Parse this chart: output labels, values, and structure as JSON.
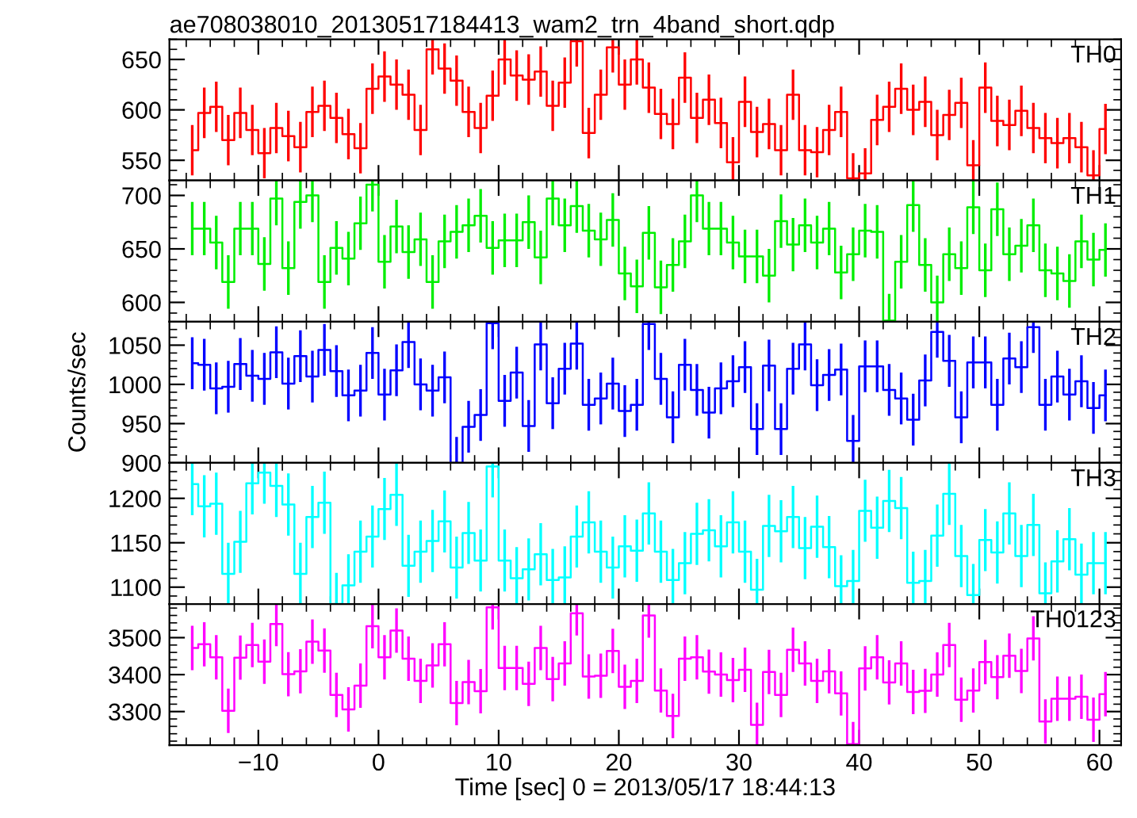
{
  "chart_data": [
    {
      "type": "step",
      "title": "ae708038010_20130517184413_wam2_trn_4band_short.qdp",
      "annotations": [
        "TH0"
      ],
      "tick_labels": "y",
      "color": "#ff0000",
      "x": [
        -15.5,
        -14.5,
        -13.5,
        -12.5,
        -11.5,
        -10.5,
        -9.5,
        -8.5,
        -7.5,
        -6.5,
        -5.5,
        -4.5,
        -3.5,
        -2.5,
        -1.5,
        -0.5,
        0.5,
        1.5,
        2.5,
        3.5,
        4.5,
        5.5,
        6.5,
        7.5,
        8.5,
        9.5,
        10.5,
        11.5,
        12.5,
        13.5,
        14.5,
        15.5,
        16.5,
        17.5,
        18.5,
        19.5,
        20.5,
        21.5,
        22.5,
        23.5,
        24.5,
        25.5,
        26.5,
        27.5,
        28.5,
        29.5,
        30.5,
        31.5,
        32.5,
        33.5,
        34.5,
        35.5,
        36.5,
        37.5,
        38.5,
        39.5,
        40.5,
        41.5,
        42.5,
        43.5,
        44.5,
        45.5,
        46.5,
        47.5,
        48.5,
        49.5,
        50.5,
        51.5,
        52.5,
        53.5,
        54.5,
        55.5,
        56.5,
        57.5,
        58.5,
        59.5,
        60.5
      ],
      "values": [
        560,
        597,
        603,
        570,
        597,
        580,
        557,
        582,
        574,
        563,
        598,
        604,
        592,
        576,
        562,
        621,
        633,
        625,
        615,
        580,
        660,
        641,
        629,
        598,
        582,
        614,
        650,
        634,
        630,
        638,
        604,
        627,
        668,
        577,
        615,
        662,
        625,
        650,
        622,
        596,
        586,
        632,
        592,
        610,
        587,
        548,
        608,
        578,
        586,
        560,
        615,
        560,
        558,
        580,
        598,
        532,
        537,
        590,
        603,
        621,
        600,
        608,
        575,
        595,
        607,
        545,
        622,
        589,
        585,
        599,
        582,
        572,
        567,
        572,
        563,
        535,
        581
      ],
      "errors": [
        25,
        25,
        25,
        25,
        25,
        25,
        25,
        25,
        25,
        25,
        25,
        25,
        25,
        25,
        25,
        25,
        25,
        25,
        25,
        25,
        25,
        25,
        25,
        25,
        25,
        25,
        25,
        25,
        25,
        25,
        25,
        25,
        25,
        25,
        25,
        25,
        25,
        25,
        25,
        25,
        25,
        25,
        25,
        25,
        25,
        25,
        25,
        25,
        25,
        25,
        25,
        25,
        25,
        25,
        25,
        25,
        25,
        25,
        25,
        25,
        25,
        25,
        25,
        25,
        25,
        25,
        25,
        25,
        25,
        25,
        25,
        25,
        25,
        25,
        25,
        25,
        25
      ],
      "xlim": [
        -17.4,
        61.8
      ],
      "xticks": [
        -10,
        0,
        10,
        20,
        30,
        40,
        50,
        60
      ],
      "ylim": [
        530,
        670
      ],
      "yticks": [
        550,
        600,
        650
      ]
    },
    {
      "type": "step",
      "annotations": [
        "TH1"
      ],
      "tick_labels": "y",
      "color": "#00ee00",
      "x": [
        -15.5,
        -14.5,
        -13.5,
        -12.5,
        -11.5,
        -10.5,
        -9.5,
        -8.5,
        -7.5,
        -6.5,
        -5.5,
        -4.5,
        -3.5,
        -2.5,
        -1.5,
        -0.5,
        0.5,
        1.5,
        2.5,
        3.5,
        4.5,
        5.5,
        6.5,
        7.5,
        8.5,
        9.5,
        10.5,
        11.5,
        12.5,
        13.5,
        14.5,
        15.5,
        16.5,
        17.5,
        18.5,
        19.5,
        20.5,
        21.5,
        22.5,
        23.5,
        24.5,
        25.5,
        26.5,
        27.5,
        28.5,
        29.5,
        30.5,
        31.5,
        32.5,
        33.5,
        34.5,
        35.5,
        36.5,
        37.5,
        38.5,
        39.5,
        40.5,
        41.5,
        42.5,
        43.5,
        44.5,
        45.5,
        46.5,
        47.5,
        48.5,
        49.5,
        50.5,
        51.5,
        52.5,
        53.5,
        54.5,
        55.5,
        56.5,
        57.5,
        58.5,
        59.5,
        60.5
      ],
      "values": [
        669,
        669,
        656,
        619,
        669,
        669,
        636,
        697,
        632,
        694,
        700,
        619,
        651,
        641,
        674,
        710,
        638,
        671,
        647,
        659,
        619,
        657,
        666,
        672,
        681,
        651,
        658,
        658,
        675,
        642,
        697,
        672,
        690,
        667,
        659,
        677,
        627,
        615,
        665,
        614,
        635,
        657,
        700,
        669,
        669,
        656,
        643,
        643,
        625,
        676,
        654,
        672,
        656,
        669,
        628,
        645,
        667,
        666,
        583,
        638,
        691,
        635,
        600,
        645,
        632,
        689,
        630,
        687,
        645,
        653,
        672,
        630,
        627,
        620,
        657,
        640,
        649
      ],
      "errors": [
        25,
        25,
        25,
        25,
        25,
        25,
        25,
        25,
        25,
        25,
        25,
        25,
        25,
        25,
        25,
        25,
        25,
        25,
        25,
        25,
        25,
        25,
        25,
        25,
        25,
        25,
        25,
        25,
        25,
        25,
        25,
        25,
        25,
        25,
        25,
        25,
        25,
        25,
        25,
        25,
        25,
        25,
        25,
        25,
        25,
        25,
        25,
        25,
        25,
        25,
        25,
        25,
        25,
        25,
        25,
        25,
        25,
        25,
        25,
        25,
        25,
        25,
        25,
        25,
        25,
        25,
        25,
        25,
        25,
        25,
        25,
        25,
        25,
        25,
        25,
        25,
        25
      ],
      "xlim": [
        -17.4,
        61.8
      ],
      "xticks": [
        -10,
        0,
        10,
        20,
        30,
        40,
        50,
        60
      ],
      "ylim": [
        582,
        714
      ],
      "yticks": [
        600,
        650,
        700
      ]
    },
    {
      "type": "step",
      "annotations": [
        "TH2"
      ],
      "tick_labels": "y",
      "ylabel": "Counts/sec",
      "color": "#0000ff",
      "x": [
        -15.5,
        -14.5,
        -13.5,
        -12.5,
        -11.5,
        -10.5,
        -9.5,
        -8.5,
        -7.5,
        -6.5,
        -5.5,
        -4.5,
        -3.5,
        -2.5,
        -1.5,
        -0.5,
        0.5,
        1.5,
        2.5,
        3.5,
        4.5,
        5.5,
        6.5,
        7.5,
        8.5,
        9.5,
        10.5,
        11.5,
        12.5,
        13.5,
        14.5,
        15.5,
        16.5,
        17.5,
        18.5,
        19.5,
        20.5,
        21.5,
        22.5,
        23.5,
        24.5,
        25.5,
        26.5,
        27.5,
        28.5,
        29.5,
        30.5,
        31.5,
        32.5,
        33.5,
        34.5,
        35.5,
        36.5,
        37.5,
        38.5,
        39.5,
        40.5,
        41.5,
        42.5,
        43.5,
        44.5,
        45.5,
        46.5,
        47.5,
        48.5,
        49.5,
        50.5,
        51.5,
        52.5,
        53.5,
        54.5,
        55.5,
        56.5,
        57.5,
        58.5,
        59.5,
        60.5
      ],
      "values": [
        1027,
        1025,
        995,
        997,
        1026,
        1011,
        1007,
        1041,
        1001,
        1036,
        1010,
        1044,
        1017,
        986,
        992,
        1040,
        987,
        1018,
        1054,
        1000,
        992,
        1009,
        900,
        946,
        961,
        1078,
        979,
        1015,
        947,
        1051,
        976,
        1020,
        1052,
        974,
        982,
        1001,
        966,
        974,
        1077,
        1007,
        958,
        1025,
        993,
        964,
        995,
        1004,
        1022,
        943,
        1024,
        943,
        1020,
        1051,
        999,
        1012,
        1019,
        928,
        1023,
        1023,
        993,
        982,
        955,
        1005,
        1067,
        1030,
        958,
        1028,
        1028,
        974,
        1033,
        1022,
        1073,
        974,
        1010,
        987,
        1004,
        970,
        986
      ],
      "errors": [
        33,
        33,
        33,
        33,
        33,
        33,
        33,
        33,
        33,
        33,
        33,
        33,
        33,
        33,
        33,
        33,
        33,
        33,
        33,
        33,
        33,
        33,
        33,
        33,
        33,
        33,
        33,
        33,
        33,
        33,
        33,
        33,
        33,
        33,
        33,
        33,
        33,
        33,
        33,
        33,
        33,
        33,
        33,
        33,
        33,
        33,
        33,
        33,
        33,
        33,
        33,
        33,
        33,
        33,
        33,
        33,
        33,
        33,
        33,
        33,
        33,
        33,
        33,
        33,
        33,
        33,
        33,
        33,
        33,
        33,
        33,
        33,
        33,
        33,
        33,
        33,
        33
      ],
      "xlim": [
        -17.4,
        61.8
      ],
      "xticks": [
        -10,
        0,
        10,
        20,
        30,
        40,
        50,
        60
      ],
      "ylim": [
        900,
        1080
      ],
      "yticks": [
        900,
        950,
        1000,
        1050
      ]
    },
    {
      "type": "step",
      "annotations": [
        "TH3"
      ],
      "tick_labels": "y",
      "color": "#00ffff",
      "x": [
        -15.5,
        -14.5,
        -13.5,
        -12.5,
        -11.5,
        -10.5,
        -9.5,
        -8.5,
        -7.5,
        -6.5,
        -5.5,
        -4.5,
        -3.5,
        -2.5,
        -1.5,
        -0.5,
        0.5,
        1.5,
        2.5,
        3.5,
        4.5,
        5.5,
        6.5,
        7.5,
        8.5,
        9.5,
        10.5,
        11.5,
        12.5,
        13.5,
        14.5,
        15.5,
        16.5,
        17.5,
        18.5,
        19.5,
        20.5,
        21.5,
        22.5,
        23.5,
        24.5,
        25.5,
        26.5,
        27.5,
        28.5,
        29.5,
        30.5,
        31.5,
        32.5,
        33.5,
        34.5,
        35.5,
        36.5,
        37.5,
        38.5,
        39.5,
        40.5,
        41.5,
        42.5,
        43.5,
        44.5,
        45.5,
        46.5,
        47.5,
        48.5,
        49.5,
        50.5,
        51.5,
        52.5,
        53.5,
        54.5,
        55.5,
        56.5,
        57.5,
        58.5,
        59.5,
        60.5
      ],
      "values": [
        1216,
        1191,
        1194,
        1115,
        1151,
        1217,
        1229,
        1214,
        1193,
        1115,
        1179,
        1195,
        1081,
        1102,
        1140,
        1157,
        1188,
        1204,
        1124,
        1140,
        1152,
        1174,
        1122,
        1161,
        1130,
        1236,
        1130,
        1110,
        1120,
        1137,
        1108,
        1111,
        1157,
        1173,
        1140,
        1122,
        1146,
        1141,
        1183,
        1140,
        1108,
        1127,
        1160,
        1164,
        1146,
        1173,
        1140,
        1097,
        1169,
        1163,
        1179,
        1144,
        1168,
        1145,
        1101,
        1107,
        1186,
        1167,
        1197,
        1189,
        1105,
        1107,
        1158,
        1205,
        1135,
        1091,
        1153,
        1139,
        1183,
        1135,
        1170,
        1093,
        1129,
        1154,
        1114,
        1127,
        1127
      ],
      "errors": [
        35,
        35,
        35,
        35,
        35,
        35,
        35,
        35,
        35,
        35,
        35,
        35,
        35,
        35,
        35,
        35,
        35,
        35,
        35,
        35,
        35,
        35,
        35,
        35,
        35,
        35,
        35,
        35,
        35,
        35,
        35,
        35,
        35,
        35,
        35,
        35,
        35,
        35,
        35,
        35,
        35,
        35,
        35,
        35,
        35,
        35,
        35,
        35,
        35,
        35,
        35,
        35,
        35,
        35,
        35,
        35,
        35,
        35,
        35,
        35,
        35,
        35,
        35,
        35,
        35,
        35,
        35,
        35,
        35,
        35,
        35,
        35,
        35,
        35,
        35,
        35,
        35
      ],
      "xlim": [
        -17.4,
        61.8
      ],
      "xticks": [
        -10,
        0,
        10,
        20,
        30,
        40,
        50,
        60
      ],
      "ylim": [
        1081,
        1240
      ],
      "yticks": [
        1100,
        1150,
        1200
      ]
    },
    {
      "type": "step",
      "annotations": [
        "TH0123"
      ],
      "xlabel": "Time [sec] 0 = 2013/05/17 18:44:13",
      "color": "#ff00ff",
      "x": [
        -15.5,
        -14.5,
        -13.5,
        -12.5,
        -11.5,
        -10.5,
        -9.5,
        -8.5,
        -7.5,
        -6.5,
        -5.5,
        -4.5,
        -3.5,
        -2.5,
        -1.5,
        -0.5,
        0.5,
        1.5,
        2.5,
        3.5,
        4.5,
        5.5,
        6.5,
        7.5,
        8.5,
        9.5,
        10.5,
        11.5,
        12.5,
        13.5,
        14.5,
        15.5,
        16.5,
        17.5,
        18.5,
        19.5,
        20.5,
        21.5,
        22.5,
        23.5,
        24.5,
        25.5,
        26.5,
        27.5,
        28.5,
        29.5,
        30.5,
        31.5,
        32.5,
        33.5,
        34.5,
        35.5,
        36.5,
        37.5,
        38.5,
        39.5,
        40.5,
        41.5,
        42.5,
        43.5,
        44.5,
        45.5,
        46.5,
        47.5,
        48.5,
        49.5,
        50.5,
        51.5,
        52.5,
        53.5,
        54.5,
        55.5,
        56.5,
        57.5,
        58.5,
        59.5,
        60.5
      ],
      "values": [
        3472,
        3482,
        3447,
        3302,
        3446,
        3480,
        3435,
        3537,
        3401,
        3409,
        3489,
        3465,
        3345,
        3306,
        3370,
        3531,
        3447,
        3519,
        3443,
        3383,
        3425,
        3482,
        3323,
        3380,
        3355,
        3582,
        3418,
        3418,
        3375,
        3472,
        3388,
        3430,
        3566,
        3395,
        3397,
        3464,
        3367,
        3383,
        3560,
        3357,
        3288,
        3443,
        3447,
        3408,
        3400,
        3385,
        3413,
        3264,
        3407,
        3345,
        3467,
        3430,
        3383,
        3409,
        3349,
        3212,
        3417,
        3447,
        3379,
        3430,
        3353,
        3356,
        3400,
        3480,
        3332,
        3357,
        3434,
        3393,
        3451,
        3410,
        3498,
        3273,
        3335,
        3335,
        3340,
        3278,
        3347
      ],
      "errors": [
        60,
        60,
        60,
        60,
        60,
        60,
        60,
        60,
        60,
        60,
        60,
        60,
        60,
        60,
        60,
        60,
        60,
        60,
        60,
        60,
        60,
        60,
        60,
        60,
        60,
        60,
        60,
        60,
        60,
        60,
        60,
        60,
        60,
        60,
        60,
        60,
        60,
        60,
        60,
        60,
        60,
        60,
        60,
        60,
        60,
        60,
        60,
        60,
        60,
        60,
        60,
        60,
        60,
        60,
        60,
        60,
        60,
        60,
        60,
        60,
        60,
        60,
        60,
        60,
        60,
        60,
        60,
        60,
        60,
        60,
        60,
        60,
        60,
        60,
        60,
        60,
        60
      ],
      "xlim": [
        -17.4,
        61.8
      ],
      "xticks": [
        -10,
        0,
        10,
        20,
        30,
        40,
        50,
        60
      ],
      "ylim": [
        3209,
        3591
      ],
      "yticks": [
        3300,
        3400,
        3500
      ]
    }
  ]
}
